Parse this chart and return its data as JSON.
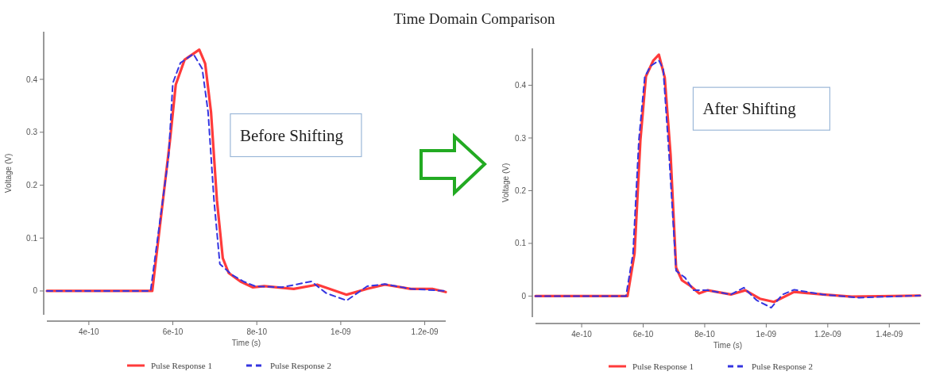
{
  "chart_data": [
    {
      "type": "line",
      "title": "Time Domain Comparison",
      "xlabel": "Time (s)",
      "ylabel": "Voltage (V)",
      "annotations": [
        "Before Shifting"
      ],
      "legend": "bottom",
      "grid": false,
      "xlim": [
        3e-10,
        1.25e-09
      ],
      "ylim": [
        -0.045,
        0.49
      ],
      "xticks": [
        {
          "value": 4e-10,
          "label": "4e-10"
        },
        {
          "value": 6e-10,
          "label": "6e-10"
        },
        {
          "value": 8e-10,
          "label": "8e-10"
        },
        {
          "value": 1e-09,
          "label": "1e-09"
        },
        {
          "value": 1.2e-09,
          "label": "1.2e-09"
        }
      ],
      "yticks": [
        0,
        0.1,
        0.2,
        0.3,
        0.4
      ],
      "series": [
        {
          "name": "Pulse Response 1",
          "color": "#ff3b3b",
          "line_style": "solid",
          "x": [
            3e-10,
            5.51e-10,
            5.93e-10,
            6.07e-10,
            6.28e-10,
            6.63e-10,
            6.77e-10,
            6.91e-10,
            7.05e-10,
            7.19e-10,
            7.33e-10,
            7.61e-10,
            7.9e-10,
            8.18e-10,
            8.88e-10,
            9.44e-10,
            1.014e-09,
            1.063e-09,
            1.105e-09,
            1.167e-09,
            1.218e-09,
            1.25e-09
          ],
          "values": [
            0,
            0,
            0.283,
            0.39,
            0.437,
            0.456,
            0.43,
            0.338,
            0.172,
            0.062,
            0.034,
            0.018,
            0.007,
            0.009,
            0.004,
            0.012,
            -0.007,
            0.004,
            0.012,
            0.004,
            0.004,
            -0.002
          ]
        },
        {
          "name": "Pulse Response 2",
          "color": "#3535e0",
          "line_style": "dashed",
          "x": [
            3e-10,
            5.47e-10,
            5.9e-10,
            6e-10,
            6.18e-10,
            6.49e-10,
            6.7e-10,
            6.84e-10,
            6.98e-10,
            7.12e-10,
            7.4e-10,
            7.68e-10,
            7.96e-10,
            8.6e-10,
            9.3e-10,
            9.65e-10,
            1.014e-09,
            1.063e-09,
            1.105e-09,
            1.167e-09,
            1.25e-09
          ],
          "values": [
            0,
            0,
            0.255,
            0.393,
            0.431,
            0.448,
            0.42,
            0.338,
            0.172,
            0.051,
            0.031,
            0.018,
            0.009,
            0.007,
            0.018,
            -0.004,
            -0.018,
            0.009,
            0.013,
            0.004,
            0
          ]
        }
      ]
    },
    {
      "type": "line",
      "xlabel": "Time (s)",
      "ylabel": "Voltage (V)",
      "annotations": [
        "After Shifting"
      ],
      "legend": "bottom",
      "grid": false,
      "xlim": [
        2.5e-10,
        1.5e-09
      ],
      "ylim": [
        -0.04,
        0.47
      ],
      "xticks": [
        {
          "value": 4e-10,
          "label": "4e-10"
        },
        {
          "value": 6e-10,
          "label": "6e-10"
        },
        {
          "value": 8e-10,
          "label": "8e-10"
        },
        {
          "value": 1e-09,
          "label": "1e-09"
        },
        {
          "value": 1.2e-09,
          "label": "1.2e-09"
        },
        {
          "value": 1.4e-09,
          "label": "1.4e-09"
        }
      ],
      "yticks": [
        0,
        0.1,
        0.2,
        0.3,
        0.4
      ],
      "series": [
        {
          "name": "Pulse Response 1",
          "color": "#ff3b3b",
          "line_style": "solid",
          "x": [
            2.5e-10,
            5.49e-10,
            5.72e-10,
            5.91e-10,
            6.09e-10,
            6.33e-10,
            6.51e-10,
            6.7e-10,
            6.89e-10,
            7.07e-10,
            7.26e-10,
            7.54e-10,
            7.82e-10,
            8.1e-10,
            8.85e-10,
            9.32e-10,
            9.79e-10,
            1.025e-09,
            1.091e-09,
            1.184e-09,
            1.278e-09,
            1.5e-09
          ],
          "values": [
            0,
            0,
            0.081,
            0.296,
            0.417,
            0.447,
            0.458,
            0.415,
            0.269,
            0.054,
            0.03,
            0.019,
            0.005,
            0.011,
            0.003,
            0.011,
            -0.005,
            -0.011,
            0.008,
            0.003,
            -0.001,
            0.001
          ]
        },
        {
          "name": "Pulse Response 2",
          "color": "#3535e0",
          "line_style": "dashed",
          "x": [
            2.5e-10,
            5.44e-10,
            5.67e-10,
            5.86e-10,
            6.05e-10,
            6.23e-10,
            6.51e-10,
            6.65e-10,
            6.84e-10,
            7.07e-10,
            7.36e-10,
            7.64e-10,
            8.1e-10,
            8.85e-10,
            9.27e-10,
            9.69e-10,
            1.016e-09,
            1.053e-09,
            1.091e-09,
            1.184e-09,
            1.3e-09,
            1.5e-09
          ],
          "values": [
            0,
            0,
            0.081,
            0.296,
            0.415,
            0.436,
            0.447,
            0.431,
            0.269,
            0.048,
            0.035,
            0.011,
            0.011,
            0.003,
            0.016,
            -0.008,
            -0.022,
            0.003,
            0.012,
            0.003,
            -0.003,
            0.001
          ]
        }
      ]
    }
  ]
}
